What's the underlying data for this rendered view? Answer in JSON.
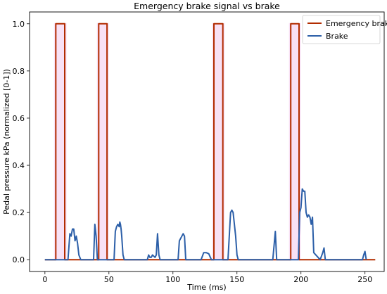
{
  "chart_data": {
    "type": "line",
    "title": "Emergency brake signal vs brake",
    "xlabel": "Time (ms)",
    "ylabel": "Pedal pressure kPa (normalized [0-1])",
    "xlim": [
      -12,
      265
    ],
    "ylim": [
      -0.05,
      1.05
    ],
    "xticks": [
      0,
      50,
      100,
      150,
      200,
      250
    ],
    "yticks": [
      0.0,
      0.2,
      0.4,
      0.6,
      0.8,
      1.0
    ],
    "xtick_labels": [
      "0",
      "50",
      "100",
      "150",
      "200",
      "250"
    ],
    "ytick_labels": [
      "0.0",
      "0.2",
      "0.4",
      "0.6",
      "0.8",
      "1.0"
    ],
    "grid": false,
    "legend_position": "top-right",
    "series": [
      {
        "name": "Emergency brake",
        "color": "#b22c00",
        "x": [
          0,
          8.5,
          8.5,
          15.5,
          15.5,
          42,
          42,
          48.5,
          48.5,
          132,
          132,
          139,
          139,
          192,
          192,
          198.5,
          198.5,
          258
        ],
        "y": [
          0,
          0,
          1,
          1,
          0,
          0,
          1,
          1,
          0,
          0,
          1,
          1,
          0,
          0,
          1,
          1,
          0,
          0
        ]
      },
      {
        "name": "Brake",
        "color": "#2c5fa8",
        "x": [
          0,
          18,
          19.5,
          20.5,
          21.5,
          22.5,
          23.5,
          24.5,
          25.5,
          26.5,
          28,
          38,
          39,
          40,
          41,
          54,
          55,
          56,
          57,
          58,
          58.5,
          59,
          59.5,
          60,
          61,
          62,
          80,
          81,
          82,
          83,
          84,
          85,
          86,
          87,
          88,
          89,
          90,
          104,
          105,
          107,
          108,
          109,
          110,
          122,
          124,
          126,
          128,
          130,
          143,
          145,
          146,
          147,
          148,
          149,
          150,
          151,
          178,
          179,
          180,
          181,
          198,
          199,
          200,
          201,
          202,
          203,
          204,
          205,
          206,
          207,
          208,
          209,
          210,
          215,
          217,
          218,
          219,
          248,
          249,
          250,
          251
        ],
        "y": [
          0,
          0,
          0.11,
          0.1,
          0.13,
          0.13,
          0.08,
          0.1,
          0.07,
          0.02,
          0,
          0,
          0.15,
          0.1,
          0,
          0,
          0.12,
          0.14,
          0.15,
          0.14,
          0.16,
          0.15,
          0.13,
          0.1,
          0.02,
          0,
          0,
          0.02,
          0.01,
          0.01,
          0.02,
          0.015,
          0.01,
          0.02,
          0.11,
          0.02,
          0,
          0,
          0.08,
          0.1,
          0.11,
          0.1,
          0,
          0,
          0.03,
          0.03,
          0.025,
          0,
          0,
          0.2,
          0.21,
          0.2,
          0.15,
          0.1,
          0.02,
          0,
          0,
          0.06,
          0.12,
          0,
          0,
          0.2,
          0.22,
          0.3,
          0.29,
          0.29,
          0.2,
          0.18,
          0.19,
          0.18,
          0.15,
          0.18,
          0.03,
          0,
          0.03,
          0.05,
          0,
          0,
          0.02,
          0.035,
          0
        ]
      }
    ],
    "shaded_regions": {
      "color": "#f7dcf3",
      "x_ranges": [
        [
          8.5,
          15.5
        ],
        [
          42,
          48.5
        ],
        [
          132,
          139
        ],
        [
          192,
          198.5
        ]
      ]
    }
  }
}
